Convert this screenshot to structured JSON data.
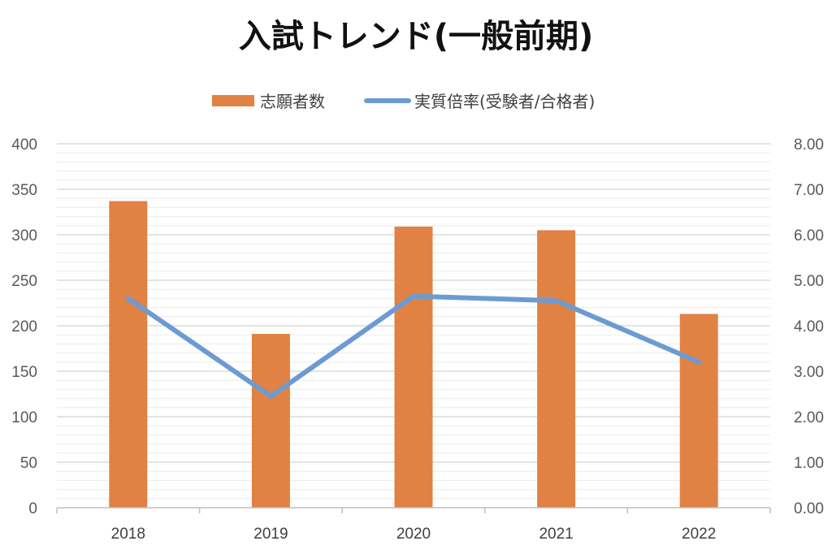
{
  "chart_data": {
    "type": "bar+line",
    "title": "入試トレンド(一般前期)",
    "categories": [
      "2018",
      "2019",
      "2020",
      "2021",
      "2022"
    ],
    "series": [
      {
        "name": "志願者数",
        "type": "bar",
        "axis": "left",
        "color": "#E08243",
        "values": [
          337,
          191,
          309,
          305,
          213
        ]
      },
      {
        "name": "実質倍率(受験者/合格者)",
        "type": "line",
        "axis": "right",
        "color": "#6C9BD2",
        "values": [
          4.6,
          2.45,
          4.65,
          4.55,
          3.2
        ]
      }
    ],
    "y_left": {
      "min": 0,
      "max": 400,
      "major_step": 50,
      "minor_step": 10,
      "ticks": [
        "0",
        "50",
        "100",
        "150",
        "200",
        "250",
        "300",
        "350",
        "400"
      ]
    },
    "y_right": {
      "min": 0,
      "max": 8,
      "major_step": 1,
      "ticks": [
        "0.00",
        "1.00",
        "2.00",
        "3.00",
        "4.00",
        "5.00",
        "6.00",
        "7.00",
        "8.00"
      ]
    },
    "legend_position": "top",
    "grid": true
  }
}
